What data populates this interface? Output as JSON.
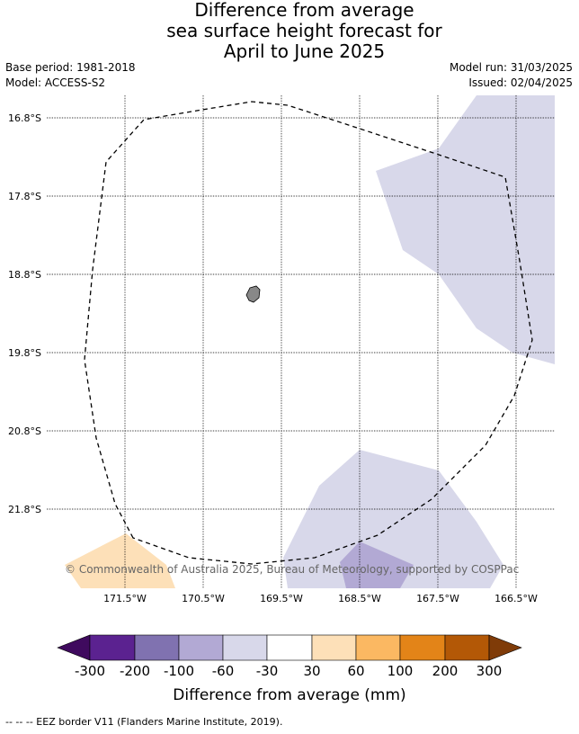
{
  "title_lines": [
    "Difference from average",
    "sea surface height forecast for",
    "April to June 2025"
  ],
  "meta_left": {
    "base_period": "Base period: 1981-2018",
    "model": "Model: ACCESS-S2"
  },
  "meta_right": {
    "model_run": "Model run: 31/03/2025",
    "issued": "Issued: 02/04/2025"
  },
  "lat_labels": [
    "16.8°S",
    "17.8°S",
    "18.8°S",
    "19.8°S",
    "20.8°S",
    "21.8°S"
  ],
  "lon_labels": [
    "171.5°W",
    "170.5°W",
    "169.5°W",
    "168.5°W",
    "167.5°W",
    "166.5°W"
  ],
  "copyright": "© Commonwealth of Australia 2025, Bureau of Meteorology, supported by COSPPac",
  "colorbar": {
    "tick_labels": [
      "-300",
      "-200",
      "-100",
      "-60",
      "-30",
      "30",
      "60",
      "100",
      "200",
      "300"
    ],
    "colors": [
      "#3f0a5e",
      "#5b2290",
      "#8072b0",
      "#b2a9d4",
      "#d8d8ea",
      "#ffffff",
      "#fde0b8",
      "#fbb862",
      "#e38418",
      "#b35806",
      "#7f3b08"
    ],
    "label": "Difference from average (mm)"
  },
  "footer": "--  --  -- EEZ border V11 (Flanders Marine Institute, 2019).",
  "anomaly_colors": {
    "light_purple": "#d8d8ea",
    "medium_purple": "#b2a9d4",
    "light_orange": "#fde0b8",
    "land": "#888888"
  }
}
